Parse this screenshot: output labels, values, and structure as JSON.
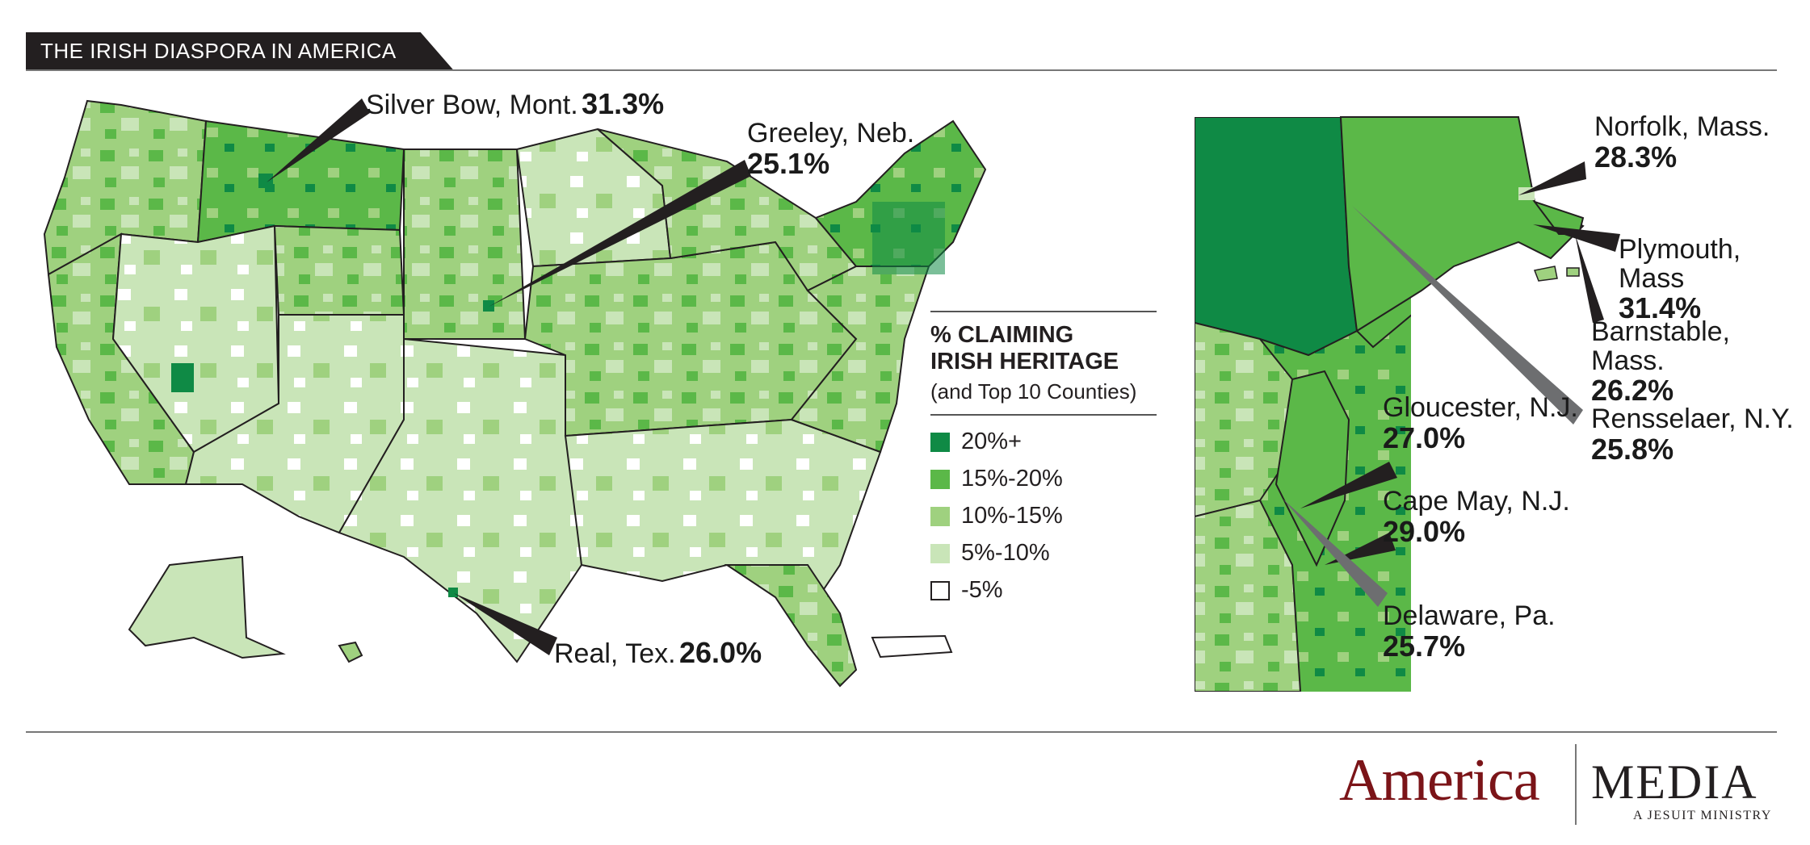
{
  "title": "THE IRISH DIASPORA IN AMERICA",
  "colors": {
    "c20": "#0f8a45",
    "c15": "#5bb848",
    "c10": "#9fd17f",
    "c5": "#c9e5b8",
    "c0": "#ffffff",
    "line": "#231f20",
    "pointer_dark": "#231f20",
    "pointer_grey": "#6d6e70"
  },
  "legend": {
    "title_line1": "% CLAIMING",
    "title_line2": "IRISH HERITAGE",
    "subtitle": "(and Top 10 Counties)",
    "items": [
      {
        "label": "20%+",
        "color": "#0f8a45"
      },
      {
        "label": "15%-20%",
        "color": "#5bb848"
      },
      {
        "label": "10%-15%",
        "color": "#9fd17f"
      },
      {
        "label": "5%-10%",
        "color": "#c9e5b8"
      },
      {
        "label": "-5%",
        "color": "#ffffff"
      }
    ]
  },
  "callouts": [
    {
      "name": "Silver Bow, Mont.",
      "pct": "31.3%"
    },
    {
      "name": "Greeley, Neb.",
      "pct": "25.1%"
    },
    {
      "name": "Real, Tex.",
      "pct": "26.0%"
    },
    {
      "name": "Norfolk, Mass.",
      "pct": "28.3%"
    },
    {
      "name": "Plymouth, Mass",
      "pct": "31.4%"
    },
    {
      "name": "Barnstable, Mass.",
      "pct": "26.2%"
    },
    {
      "name": "Rensselaer, N.Y.",
      "pct": "25.8%"
    },
    {
      "name": "Gloucester, N.J.",
      "pct": "27.0%"
    },
    {
      "name": "Cape May, N.J.",
      "pct": "29.0%"
    },
    {
      "name": "Delaware, Pa.",
      "pct": "25.7%"
    }
  ],
  "logo": {
    "brand": "America",
    "media": "MEDIA",
    "tagline": "A JESUIT MINISTRY"
  }
}
